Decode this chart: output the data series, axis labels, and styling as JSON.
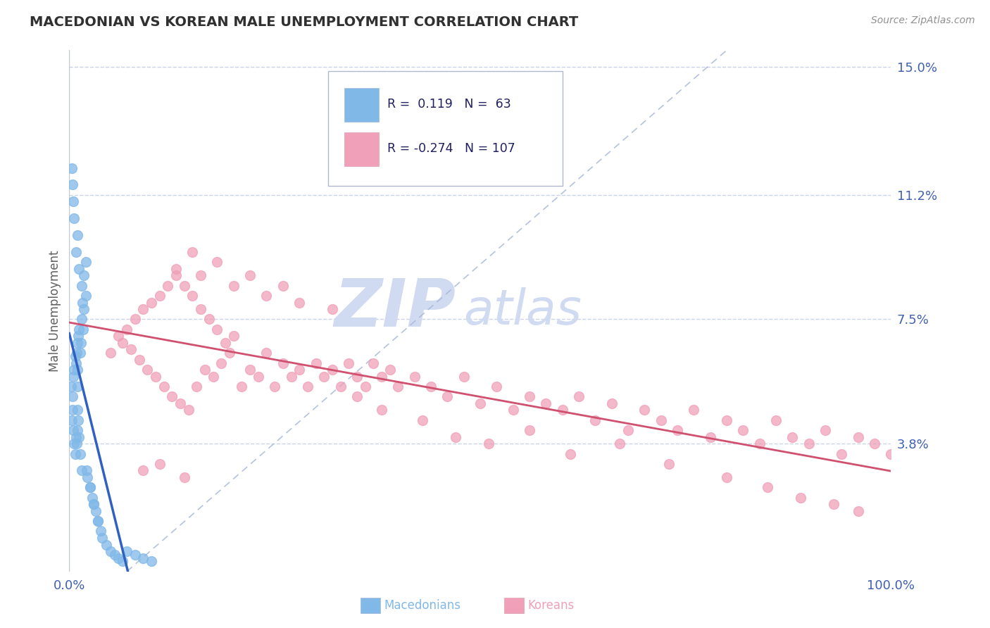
{
  "title": "MACEDONIAN VS KOREAN MALE UNEMPLOYMENT CORRELATION CHART",
  "source": "Source: ZipAtlas.com",
  "ylabel": "Male Unemployment",
  "ytick_vals": [
    0.038,
    0.075,
    0.112,
    0.15
  ],
  "ytick_labels": [
    "3.8%",
    "7.5%",
    "11.2%",
    "15.0%"
  ],
  "xlim": [
    0.0,
    1.0
  ],
  "ylim": [
    0.0,
    0.155
  ],
  "macedonian_color": "#80b8e8",
  "korean_color": "#f0a0b8",
  "macedonian_trend_color": "#3060c0",
  "korean_trend_color": "#d05070",
  "diagonal_color": "#a8b8d8",
  "watermark_color": "#d0daf0",
  "background_color": "#ffffff",
  "grid_color": "#c8d4e8",
  "border_color": "#c0c8d8",
  "title_color": "#303030",
  "source_color": "#909090",
  "axis_label_color": "#4060b0",
  "ylabel_color": "#606060",
  "legend_text_color": "#202060",
  "mac_x": [
    0.002,
    0.003,
    0.004,
    0.004,
    0.005,
    0.005,
    0.006,
    0.006,
    0.007,
    0.007,
    0.008,
    0.008,
    0.009,
    0.009,
    0.01,
    0.01,
    0.01,
    0.01,
    0.01,
    0.011,
    0.011,
    0.012,
    0.012,
    0.013,
    0.013,
    0.014,
    0.015,
    0.015,
    0.016,
    0.017,
    0.018,
    0.02,
    0.021,
    0.022,
    0.025,
    0.028,
    0.03,
    0.032,
    0.035,
    0.038,
    0.04,
    0.045,
    0.05,
    0.055,
    0.06,
    0.065,
    0.07,
    0.08,
    0.09,
    0.1,
    0.003,
    0.004,
    0.005,
    0.006,
    0.008,
    0.01,
    0.012,
    0.015,
    0.018,
    0.02,
    0.025,
    0.03,
    0.035
  ],
  "mac_y": [
    0.055,
    0.045,
    0.048,
    0.052,
    0.058,
    0.042,
    0.06,
    0.038,
    0.064,
    0.035,
    0.062,
    0.04,
    0.065,
    0.038,
    0.068,
    0.042,
    0.06,
    0.048,
    0.055,
    0.07,
    0.045,
    0.072,
    0.04,
    0.065,
    0.035,
    0.068,
    0.075,
    0.03,
    0.08,
    0.072,
    0.078,
    0.082,
    0.03,
    0.028,
    0.025,
    0.022,
    0.02,
    0.018,
    0.015,
    0.012,
    0.01,
    0.008,
    0.006,
    0.005,
    0.004,
    0.003,
    0.006,
    0.005,
    0.004,
    0.003,
    0.12,
    0.115,
    0.11,
    0.105,
    0.095,
    0.1,
    0.09,
    0.085,
    0.088,
    0.092,
    0.025,
    0.02,
    0.015
  ],
  "kor_x": [
    0.05,
    0.06,
    0.065,
    0.07,
    0.075,
    0.08,
    0.085,
    0.09,
    0.095,
    0.1,
    0.105,
    0.11,
    0.115,
    0.12,
    0.125,
    0.13,
    0.135,
    0.14,
    0.145,
    0.15,
    0.155,
    0.16,
    0.165,
    0.17,
    0.175,
    0.18,
    0.185,
    0.19,
    0.195,
    0.2,
    0.21,
    0.22,
    0.23,
    0.24,
    0.25,
    0.26,
    0.27,
    0.28,
    0.29,
    0.3,
    0.31,
    0.32,
    0.33,
    0.34,
    0.35,
    0.36,
    0.37,
    0.38,
    0.39,
    0.4,
    0.42,
    0.44,
    0.46,
    0.48,
    0.5,
    0.52,
    0.54,
    0.56,
    0.58,
    0.6,
    0.62,
    0.64,
    0.66,
    0.68,
    0.7,
    0.72,
    0.74,
    0.76,
    0.78,
    0.8,
    0.82,
    0.84,
    0.86,
    0.88,
    0.9,
    0.92,
    0.94,
    0.96,
    0.98,
    1.0,
    0.13,
    0.15,
    0.16,
    0.18,
    0.2,
    0.22,
    0.24,
    0.26,
    0.28,
    0.32,
    0.35,
    0.38,
    0.43,
    0.47,
    0.51,
    0.56,
    0.61,
    0.67,
    0.73,
    0.8,
    0.85,
    0.89,
    0.93,
    0.96,
    0.09,
    0.11,
    0.14
  ],
  "kor_y": [
    0.065,
    0.07,
    0.068,
    0.072,
    0.066,
    0.075,
    0.063,
    0.078,
    0.06,
    0.08,
    0.058,
    0.082,
    0.055,
    0.085,
    0.052,
    0.088,
    0.05,
    0.085,
    0.048,
    0.082,
    0.055,
    0.078,
    0.06,
    0.075,
    0.058,
    0.072,
    0.062,
    0.068,
    0.065,
    0.07,
    0.055,
    0.06,
    0.058,
    0.065,
    0.055,
    0.062,
    0.058,
    0.06,
    0.055,
    0.062,
    0.058,
    0.06,
    0.055,
    0.062,
    0.058,
    0.055,
    0.062,
    0.058,
    0.06,
    0.055,
    0.058,
    0.055,
    0.052,
    0.058,
    0.05,
    0.055,
    0.048,
    0.052,
    0.05,
    0.048,
    0.052,
    0.045,
    0.05,
    0.042,
    0.048,
    0.045,
    0.042,
    0.048,
    0.04,
    0.045,
    0.042,
    0.038,
    0.045,
    0.04,
    0.038,
    0.042,
    0.035,
    0.04,
    0.038,
    0.035,
    0.09,
    0.095,
    0.088,
    0.092,
    0.085,
    0.088,
    0.082,
    0.085,
    0.08,
    0.078,
    0.052,
    0.048,
    0.045,
    0.04,
    0.038,
    0.042,
    0.035,
    0.038,
    0.032,
    0.028,
    0.025,
    0.022,
    0.02,
    0.018,
    0.03,
    0.032,
    0.028
  ]
}
